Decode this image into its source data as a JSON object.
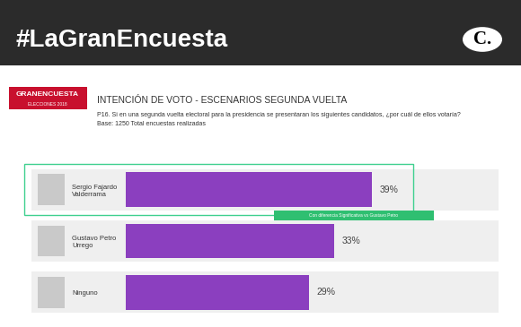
{
  "chart_data": {
    "type": "bar",
    "orientation": "horizontal",
    "title": "INTENCIÓN DE VOTO - ESCENARIOS SEGUNDA VUELTA",
    "subtitle": "P16. Si en una segunda vuelta electoral para la presidencia se presentaran los siguientes candidatos, ¿por cuál de ellos votaría?",
    "annotations": [
      "#LaGranEncuesta",
      "C.",
      "GRANENCUESTA",
      "ELECCIONES 2018",
      "Base: 1250 Total encuestas realizadas",
      "Con diferencia Significativa vs Gustavo Petro"
    ],
    "categories": [
      "Sergio Fajardo Valderrama",
      "Gustavo Petro Urrego",
      "Ninguno"
    ],
    "values": [
      39,
      33,
      29
    ],
    "value_labels": [
      "39%",
      "33%",
      "29%"
    ],
    "data_labels": true,
    "color": "#8b3fbf",
    "xlim": [
      0,
      59
    ],
    "xticks": [],
    "tick_labels": "y",
    "grid": false
  }
}
